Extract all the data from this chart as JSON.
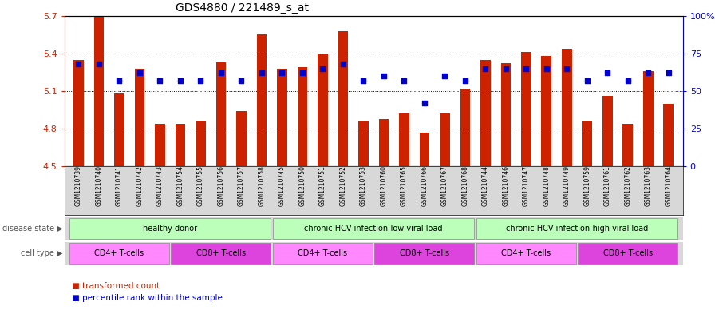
{
  "title": "GDS4880 / 221489_s_at",
  "samples": [
    "GSM1210739",
    "GSM1210740",
    "GSM1210741",
    "GSM1210742",
    "GSM1210743",
    "GSM1210754",
    "GSM1210755",
    "GSM1210756",
    "GSM1210757",
    "GSM1210758",
    "GSM1210745",
    "GSM1210750",
    "GSM1210751",
    "GSM1210752",
    "GSM1210753",
    "GSM1210760",
    "GSM1210765",
    "GSM1210766",
    "GSM1210767",
    "GSM1210768",
    "GSM1210744",
    "GSM1210746",
    "GSM1210747",
    "GSM1210748",
    "GSM1210749",
    "GSM1210759",
    "GSM1210761",
    "GSM1210762",
    "GSM1210763",
    "GSM1210764"
  ],
  "bar_values": [
    5.35,
    5.7,
    5.08,
    5.28,
    4.84,
    4.84,
    4.86,
    5.33,
    4.94,
    5.55,
    5.28,
    5.29,
    5.39,
    5.58,
    4.86,
    4.88,
    4.92,
    4.77,
    4.92,
    5.12,
    5.35,
    5.32,
    5.41,
    5.38,
    5.44,
    4.86,
    5.06,
    4.84,
    5.26,
    5.0
  ],
  "percentile_values": [
    68,
    68,
    57,
    62,
    57,
    57,
    57,
    62,
    57,
    62,
    62,
    62,
    65,
    68,
    57,
    60,
    57,
    42,
    60,
    57,
    65,
    65,
    65,
    65,
    65,
    57,
    62,
    57,
    62,
    62
  ],
  "y_min": 4.5,
  "y_max": 5.7,
  "bar_color": "#cc2200",
  "dot_color": "#0000cc",
  "disease_state_groups": [
    {
      "label": "healthy donor",
      "start": 0,
      "end": 9,
      "color": "#bbffbb"
    },
    {
      "label": "chronic HCV infection-low viral load",
      "start": 10,
      "end": 19,
      "color": "#bbffbb"
    },
    {
      "label": "chronic HCV infection-high viral load",
      "start": 20,
      "end": 29,
      "color": "#bbffbb"
    }
  ],
  "cell_type_groups": [
    {
      "label": "CD4+ T-cells",
      "start": 0,
      "end": 4,
      "color": "#ff88ff"
    },
    {
      "label": "CD8+ T-cells",
      "start": 5,
      "end": 9,
      "color": "#dd44dd"
    },
    {
      "label": "CD4+ T-cells",
      "start": 10,
      "end": 14,
      "color": "#ff88ff"
    },
    {
      "label": "CD8+ T-cells",
      "start": 15,
      "end": 19,
      "color": "#dd44dd"
    },
    {
      "label": "CD4+ T-cells",
      "start": 20,
      "end": 24,
      "color": "#ff88ff"
    },
    {
      "label": "CD8+ T-cells",
      "start": 25,
      "end": 29,
      "color": "#dd44dd"
    }
  ],
  "disease_state_label": "disease state",
  "cell_type_label": "cell type",
  "legend_bar_label": "transformed count",
  "legend_dot_label": "percentile rank within the sample",
  "yticks_left": [
    4.5,
    4.8,
    5.1,
    5.4,
    5.7
  ],
  "yticks_right": [
    0,
    25,
    50,
    75,
    100
  ],
  "ytick_labels_right": [
    "0",
    "25",
    "50",
    "75",
    "100%"
  ]
}
